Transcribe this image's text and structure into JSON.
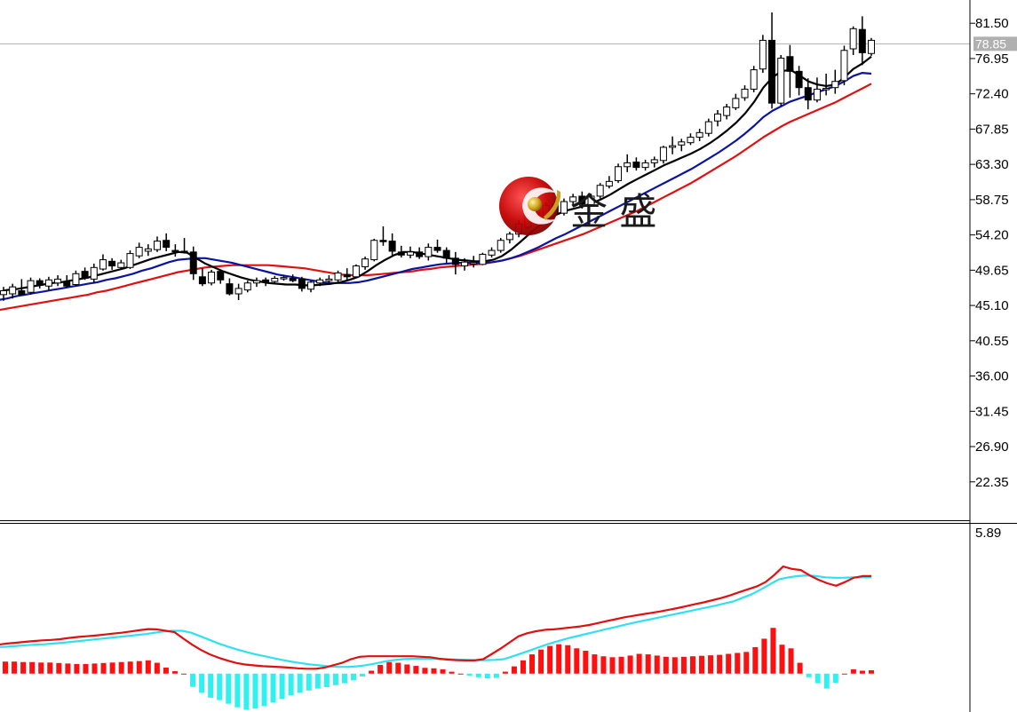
{
  "watermark": {
    "text": "金 盛"
  },
  "colors": {
    "bull_body": "#ffffff",
    "bear_body": "#000000",
    "candle_outline": "#000000",
    "ma_fast": "#000000",
    "ma_mid": "#0a14a0",
    "ma_slow": "#e01010",
    "macd_line": "#e01010",
    "signal_line": "#30e0f0",
    "hist_pos": "#ff1010",
    "hist_neg": "#30f0f0",
    "current_price_line": "#b0b0b0",
    "current_price_bg": "#b0b0b0"
  },
  "chart_data": [
    {
      "type": "candlestick",
      "panel": "price",
      "y_axis_ticks": [
        "81.50",
        "76.95",
        "72.40",
        "67.85",
        "63.30",
        "58.75",
        "54.20",
        "49.65",
        "45.10",
        "40.55",
        "36.00",
        "31.45",
        "26.90",
        "22.35"
      ],
      "ylim": [
        17.4,
        84.5
      ],
      "current_price": 78.85,
      "current_price_label": "78.85",
      "candles": [
        {
          "o": 46.5,
          "h": 47.5,
          "l": 45.7,
          "c": 47.0
        },
        {
          "o": 46.6,
          "h": 47.9,
          "l": 46.0,
          "c": 47.5
        },
        {
          "o": 47.0,
          "h": 48.5,
          "l": 46.6,
          "c": 46.5
        },
        {
          "o": 46.8,
          "h": 48.7,
          "l": 46.5,
          "c": 48.3
        },
        {
          "o": 48.3,
          "h": 48.6,
          "l": 47.3,
          "c": 47.7
        },
        {
          "o": 47.6,
          "h": 48.8,
          "l": 47.1,
          "c": 48.4
        },
        {
          "o": 48.0,
          "h": 49.0,
          "l": 47.6,
          "c": 48.5
        },
        {
          "o": 48.2,
          "h": 49.0,
          "l": 47.4,
          "c": 47.6
        },
        {
          "o": 47.8,
          "h": 49.6,
          "l": 47.6,
          "c": 49.2
        },
        {
          "o": 49.5,
          "h": 50.0,
          "l": 48.4,
          "c": 48.6
        },
        {
          "o": 48.5,
          "h": 50.5,
          "l": 48.0,
          "c": 50.0
        },
        {
          "o": 49.8,
          "h": 51.7,
          "l": 49.6,
          "c": 51.0
        },
        {
          "o": 50.8,
          "h": 51.2,
          "l": 49.7,
          "c": 50.2
        },
        {
          "o": 50.0,
          "h": 51.0,
          "l": 49.7,
          "c": 50.6
        },
        {
          "o": 50.0,
          "h": 52.2,
          "l": 49.8,
          "c": 51.8
        },
        {
          "o": 51.5,
          "h": 53.2,
          "l": 51.2,
          "c": 52.6
        },
        {
          "o": 52.1,
          "h": 53.0,
          "l": 51.5,
          "c": 52.4
        },
        {
          "o": 52.3,
          "h": 54.0,
          "l": 52.0,
          "c": 53.4
        },
        {
          "o": 53.5,
          "h": 54.4,
          "l": 52.1,
          "c": 52.6
        },
        {
          "o": 52.2,
          "h": 53.0,
          "l": 51.4,
          "c": 52.1
        },
        {
          "o": 52.1,
          "h": 53.8,
          "l": 51.8,
          "c": 52.0
        },
        {
          "o": 52.0,
          "h": 52.7,
          "l": 48.4,
          "c": 49.2
        },
        {
          "o": 48.8,
          "h": 49.9,
          "l": 47.6,
          "c": 47.9
        },
        {
          "o": 48.0,
          "h": 49.7,
          "l": 47.7,
          "c": 49.4
        },
        {
          "o": 49.5,
          "h": 49.7,
          "l": 47.9,
          "c": 48.4
        },
        {
          "o": 47.9,
          "h": 48.6,
          "l": 46.4,
          "c": 46.6
        },
        {
          "o": 46.6,
          "h": 47.9,
          "l": 45.8,
          "c": 47.3
        },
        {
          "o": 47.1,
          "h": 48.3,
          "l": 46.8,
          "c": 48.0
        },
        {
          "o": 48.0,
          "h": 48.7,
          "l": 47.5,
          "c": 48.3
        },
        {
          "o": 48.4,
          "h": 48.7,
          "l": 47.6,
          "c": 48.1
        },
        {
          "o": 48.2,
          "h": 48.9,
          "l": 48.0,
          "c": 48.6
        },
        {
          "o": 48.6,
          "h": 49.0,
          "l": 48.3,
          "c": 48.7
        },
        {
          "o": 48.6,
          "h": 49.1,
          "l": 48.1,
          "c": 48.3
        },
        {
          "o": 48.5,
          "h": 48.8,
          "l": 46.9,
          "c": 47.3
        },
        {
          "o": 47.2,
          "h": 48.3,
          "l": 46.8,
          "c": 48.1
        },
        {
          "o": 48.0,
          "h": 48.7,
          "l": 47.6,
          "c": 48.4
        },
        {
          "o": 48.3,
          "h": 49.0,
          "l": 47.9,
          "c": 48.5
        },
        {
          "o": 48.4,
          "h": 49.6,
          "l": 48.0,
          "c": 49.3
        },
        {
          "o": 49.1,
          "h": 49.9,
          "l": 48.4,
          "c": 48.8
        },
        {
          "o": 48.8,
          "h": 50.4,
          "l": 48.6,
          "c": 50.2
        },
        {
          "o": 50.1,
          "h": 51.4,
          "l": 49.7,
          "c": 51.1
        },
        {
          "o": 51.0,
          "h": 53.7,
          "l": 50.8,
          "c": 53.5
        },
        {
          "o": 53.5,
          "h": 55.3,
          "l": 52.8,
          "c": 53.4
        },
        {
          "o": 53.4,
          "h": 54.4,
          "l": 51.5,
          "c": 52.1
        },
        {
          "o": 52.0,
          "h": 52.8,
          "l": 51.3,
          "c": 51.6
        },
        {
          "o": 51.6,
          "h": 52.7,
          "l": 51.2,
          "c": 52.0
        },
        {
          "o": 52.0,
          "h": 52.6,
          "l": 51.1,
          "c": 51.4
        },
        {
          "o": 51.4,
          "h": 53.1,
          "l": 50.9,
          "c": 52.6
        },
        {
          "o": 52.6,
          "h": 53.6,
          "l": 51.9,
          "c": 52.2
        },
        {
          "o": 52.2,
          "h": 52.6,
          "l": 50.6,
          "c": 51.2
        },
        {
          "o": 51.2,
          "h": 52.0,
          "l": 49.1,
          "c": 50.4
        },
        {
          "o": 50.2,
          "h": 51.2,
          "l": 49.6,
          "c": 50.7
        },
        {
          "o": 50.6,
          "h": 51.5,
          "l": 50.0,
          "c": 50.6
        },
        {
          "o": 50.4,
          "h": 51.9,
          "l": 50.3,
          "c": 51.7
        },
        {
          "o": 51.6,
          "h": 52.6,
          "l": 51.3,
          "c": 52.2
        },
        {
          "o": 52.2,
          "h": 53.8,
          "l": 51.9,
          "c": 53.5
        },
        {
          "o": 53.6,
          "h": 54.6,
          "l": 53.1,
          "c": 54.3
        },
        {
          "o": 54.3,
          "h": 56.1,
          "l": 53.9,
          "c": 55.6
        },
        {
          "o": 55.2,
          "h": 57.2,
          "l": 55.0,
          "c": 57.0
        },
        {
          "o": 57.4,
          "h": 58.4,
          "l": 56.3,
          "c": 56.7
        },
        {
          "o": 56.7,
          "h": 58.4,
          "l": 56.2,
          "c": 58.0
        },
        {
          "o": 58.2,
          "h": 58.6,
          "l": 56.5,
          "c": 56.9
        },
        {
          "o": 57.0,
          "h": 58.9,
          "l": 56.7,
          "c": 58.5
        },
        {
          "o": 58.5,
          "h": 59.5,
          "l": 58.0,
          "c": 59.1
        },
        {
          "o": 59.2,
          "h": 59.8,
          "l": 57.6,
          "c": 58.2
        },
        {
          "o": 58.1,
          "h": 59.5,
          "l": 57.9,
          "c": 59.2
        },
        {
          "o": 59.2,
          "h": 60.9,
          "l": 58.9,
          "c": 60.6
        },
        {
          "o": 60.5,
          "h": 61.8,
          "l": 60.2,
          "c": 61.1
        },
        {
          "o": 61.2,
          "h": 63.4,
          "l": 60.9,
          "c": 63.0
        },
        {
          "o": 63.0,
          "h": 64.6,
          "l": 62.3,
          "c": 63.5
        },
        {
          "o": 63.6,
          "h": 64.2,
          "l": 62.5,
          "c": 62.9
        },
        {
          "o": 62.9,
          "h": 63.9,
          "l": 62.5,
          "c": 63.5
        },
        {
          "o": 63.5,
          "h": 64.3,
          "l": 62.9,
          "c": 63.9
        },
        {
          "o": 63.8,
          "h": 65.7,
          "l": 63.4,
          "c": 65.5
        },
        {
          "o": 65.5,
          "h": 66.9,
          "l": 64.6,
          "c": 65.7
        },
        {
          "o": 65.8,
          "h": 66.6,
          "l": 65.0,
          "c": 66.2
        },
        {
          "o": 66.1,
          "h": 67.3,
          "l": 65.8,
          "c": 66.8
        },
        {
          "o": 66.8,
          "h": 67.9,
          "l": 66.3,
          "c": 67.4
        },
        {
          "o": 67.3,
          "h": 69.2,
          "l": 66.9,
          "c": 68.8
        },
        {
          "o": 68.9,
          "h": 70.3,
          "l": 68.2,
          "c": 69.8
        },
        {
          "o": 69.6,
          "h": 71.1,
          "l": 69.1,
          "c": 70.7
        },
        {
          "o": 70.6,
          "h": 72.4,
          "l": 70.3,
          "c": 71.8
        },
        {
          "o": 71.9,
          "h": 73.5,
          "l": 71.5,
          "c": 73.0
        },
        {
          "o": 73.0,
          "h": 76.0,
          "l": 72.6,
          "c": 75.5
        },
        {
          "o": 75.6,
          "h": 80.0,
          "l": 75.1,
          "c": 79.3
        },
        {
          "o": 79.3,
          "h": 82.9,
          "l": 70.5,
          "c": 71.2
        },
        {
          "o": 71.2,
          "h": 77.4,
          "l": 70.8,
          "c": 77.0
        },
        {
          "o": 77.2,
          "h": 78.7,
          "l": 71.9,
          "c": 75.3
        },
        {
          "o": 75.3,
          "h": 76.0,
          "l": 72.2,
          "c": 73.2
        },
        {
          "o": 73.2,
          "h": 74.4,
          "l": 70.4,
          "c": 71.6
        },
        {
          "o": 71.6,
          "h": 74.5,
          "l": 71.3,
          "c": 73.0
        },
        {
          "o": 73.0,
          "h": 75.0,
          "l": 72.2,
          "c": 73.1
        },
        {
          "o": 73.2,
          "h": 75.5,
          "l": 72.4,
          "c": 74.0
        },
        {
          "o": 74.1,
          "h": 78.6,
          "l": 73.5,
          "c": 78.0
        },
        {
          "o": 78.2,
          "h": 81.1,
          "l": 77.4,
          "c": 80.8
        },
        {
          "o": 80.7,
          "h": 82.4,
          "l": 76.1,
          "c": 77.7
        },
        {
          "o": 77.6,
          "h": 79.6,
          "l": 77.3,
          "c": 79.3
        }
      ],
      "ma_fast": [
        46.8,
        47.1,
        47.2,
        47.4,
        47.6,
        47.8,
        48.0,
        48.1,
        48.3,
        48.5,
        48.7,
        49.0,
        49.3,
        49.6,
        49.9,
        50.3,
        50.7,
        51.1,
        51.4,
        51.7,
        52.0,
        51.9,
        51.2,
        50.5,
        50.0,
        49.5,
        49.1,
        48.7,
        48.4,
        48.2,
        48.0,
        47.9,
        47.8,
        47.8,
        47.7,
        47.7,
        47.8,
        47.9,
        48.1,
        48.4,
        48.8,
        49.5,
        50.3,
        51.0,
        51.6,
        52.0,
        52.0,
        51.8,
        51.6,
        51.4,
        51.2,
        51.0,
        50.9,
        50.8,
        50.8,
        51.0,
        51.5,
        52.3,
        53.3,
        54.3,
        55.3,
        56.1,
        56.8,
        57.3,
        57.6,
        57.9,
        58.3,
        58.8,
        59.4,
        60.1,
        60.8,
        61.4,
        62.0,
        62.6,
        63.2,
        63.7,
        64.2,
        64.7,
        65.3,
        66.0,
        66.8,
        67.7,
        68.7,
        69.9,
        71.4,
        73.2,
        74.5,
        75.3,
        75.5,
        74.8,
        74.0,
        73.6,
        73.4,
        73.6,
        74.5,
        75.6,
        76.3,
        77.2
      ],
      "ma_mid": [
        45.8,
        46.0,
        46.3,
        46.5,
        46.7,
        46.9,
        47.1,
        47.3,
        47.5,
        47.7,
        47.9,
        48.1,
        48.4,
        48.6,
        48.9,
        49.2,
        49.6,
        49.9,
        50.3,
        50.7,
        51.0,
        51.1,
        51.2,
        51.2,
        51.0,
        50.8,
        50.6,
        50.3,
        50.0,
        49.7,
        49.4,
        49.1,
        48.9,
        48.7,
        48.5,
        48.3,
        48.1,
        48.0,
        48.0,
        48.0,
        48.1,
        48.3,
        48.6,
        48.9,
        49.2,
        49.5,
        49.8,
        50.0,
        50.2,
        50.4,
        50.5,
        50.6,
        50.6,
        50.6,
        50.6,
        50.7,
        50.9,
        51.2,
        51.6,
        52.1,
        52.6,
        53.2,
        53.8,
        54.3,
        54.9,
        55.5,
        56.1,
        56.7,
        57.3,
        57.9,
        58.5,
        59.1,
        59.7,
        60.3,
        60.9,
        61.5,
        62.1,
        62.7,
        63.4,
        64.1,
        64.8,
        65.6,
        66.4,
        67.3,
        68.3,
        69.4,
        70.2,
        70.8,
        71.4,
        71.8,
        72.2,
        72.6,
        73.0,
        73.4,
        74.0,
        74.7,
        75.1,
        75.0
      ],
      "ma_slow": [
        44.5,
        44.7,
        44.9,
        45.1,
        45.3,
        45.5,
        45.7,
        45.9,
        46.1,
        46.3,
        46.5,
        46.8,
        47.0,
        47.3,
        47.6,
        47.9,
        48.2,
        48.5,
        48.8,
        49.1,
        49.4,
        49.6,
        49.8,
        50.0,
        50.1,
        50.2,
        50.3,
        50.3,
        50.3,
        50.3,
        50.3,
        50.2,
        50.1,
        50.0,
        49.9,
        49.7,
        49.5,
        49.3,
        49.1,
        49.0,
        49.0,
        49.0,
        49.1,
        49.2,
        49.3,
        49.4,
        49.5,
        49.7,
        49.8,
        50.0,
        50.1,
        50.2,
        50.3,
        50.4,
        50.5,
        50.7,
        50.9,
        51.2,
        51.5,
        51.9,
        52.3,
        52.7,
        53.1,
        53.5,
        53.9,
        54.3,
        54.8,
        55.3,
        55.8,
        56.3,
        56.8,
        57.3,
        57.9,
        58.5,
        59.1,
        59.7,
        60.3,
        60.9,
        61.6,
        62.3,
        63.0,
        63.7,
        64.4,
        65.2,
        66.0,
        66.8,
        67.5,
        68.2,
        68.8,
        69.3,
        69.8,
        70.3,
        70.8,
        71.3,
        71.9,
        72.5,
        73.1,
        73.7
      ]
    },
    {
      "type": "macd",
      "panel": "indicator",
      "y_axis_ticks": [
        "5.89"
      ],
      "ylim": [
        -1.52,
        5.89
      ],
      "histogram": [
        0.5,
        0.5,
        0.48,
        0.48,
        0.46,
        0.46,
        0.44,
        0.42,
        0.4,
        0.4,
        0.42,
        0.44,
        0.46,
        0.48,
        0.5,
        0.52,
        0.55,
        0.45,
        0.25,
        0.1,
        0.0,
        -0.55,
        -0.8,
        -1.0,
        -1.1,
        -1.25,
        -1.4,
        -1.5,
        -1.45,
        -1.35,
        -1.2,
        -1.05,
        -0.9,
        -0.8,
        -0.7,
        -0.62,
        -0.56,
        -0.48,
        -0.4,
        -0.28,
        -0.12,
        0.12,
        0.36,
        0.48,
        0.45,
        0.38,
        0.32,
        0.24,
        0.22,
        0.18,
        0.08,
        0.0,
        -0.08,
        -0.15,
        -0.2,
        -0.18,
        0.08,
        0.3,
        0.55,
        0.8,
        1.0,
        1.15,
        1.22,
        1.18,
        1.05,
        0.95,
        0.8,
        0.72,
        0.68,
        0.7,
        0.75,
        0.82,
        0.8,
        0.75,
        0.7,
        0.68,
        0.7,
        0.72,
        0.74,
        0.76,
        0.78,
        0.82,
        0.86,
        0.9,
        1.1,
        1.45,
        1.9,
        1.2,
        1.05,
        0.45,
        -0.15,
        -0.4,
        -0.62,
        -0.38,
        0.0,
        0.18,
        0.12,
        0.14
      ],
      "macd_line": [
        1.2,
        1.25,
        1.28,
        1.32,
        1.35,
        1.38,
        1.4,
        1.43,
        1.48,
        1.52,
        1.55,
        1.58,
        1.62,
        1.66,
        1.7,
        1.75,
        1.8,
        1.85,
        1.84,
        1.78,
        1.72,
        1.45,
        1.2,
        0.98,
        0.8,
        0.66,
        0.54,
        0.44,
        0.38,
        0.34,
        0.31,
        0.29,
        0.27,
        0.25,
        0.22,
        0.2,
        0.2,
        0.25,
        0.35,
        0.45,
        0.6,
        0.7,
        0.72,
        0.72,
        0.72,
        0.72,
        0.72,
        0.72,
        0.7,
        0.68,
        0.62,
        0.58,
        0.56,
        0.55,
        0.55,
        0.6,
        0.82,
        1.05,
        1.3,
        1.55,
        1.68,
        1.76,
        1.82,
        1.84,
        1.88,
        1.92,
        1.96,
        2.02,
        2.1,
        2.18,
        2.26,
        2.34,
        2.4,
        2.46,
        2.52,
        2.58,
        2.65,
        2.72,
        2.8,
        2.88,
        2.96,
        3.05,
        3.14,
        3.25,
        3.38,
        3.5,
        3.62,
        3.8,
        4.1,
        4.45,
        4.35,
        4.3,
        4.08,
        3.9,
        3.75,
        3.65,
        3.8,
        3.98,
        4.05,
        4.05
      ],
      "signal_line": [
        1.1,
        1.12,
        1.15,
        1.18,
        1.2,
        1.22,
        1.25,
        1.28,
        1.32,
        1.36,
        1.4,
        1.44,
        1.48,
        1.52,
        1.56,
        1.6,
        1.64,
        1.7,
        1.75,
        1.78,
        1.78,
        1.7,
        1.55,
        1.4,
        1.25,
        1.12,
        1.0,
        0.9,
        0.8,
        0.72,
        0.64,
        0.56,
        0.49,
        0.43,
        0.38,
        0.34,
        0.3,
        0.28,
        0.28,
        0.3,
        0.35,
        0.42,
        0.5,
        0.56,
        0.6,
        0.62,
        0.62,
        0.62,
        0.61,
        0.6,
        0.58,
        0.57,
        0.56,
        0.56,
        0.57,
        0.6,
        0.72,
        0.85,
        0.98,
        1.12,
        1.25,
        1.36,
        1.47,
        1.56,
        1.65,
        1.74,
        1.83,
        1.92,
        2.01,
        2.1,
        2.18,
        2.26,
        2.34,
        2.42,
        2.5,
        2.58,
        2.66,
        2.74,
        2.82,
        2.91,
        3.0,
        3.15,
        3.3,
        3.5,
        3.72,
        3.92,
        4.0,
        4.05,
        4.08,
        4.05,
        4.0,
        3.98,
        3.98,
        4.0,
        4.0,
        4.0
      ]
    }
  ]
}
